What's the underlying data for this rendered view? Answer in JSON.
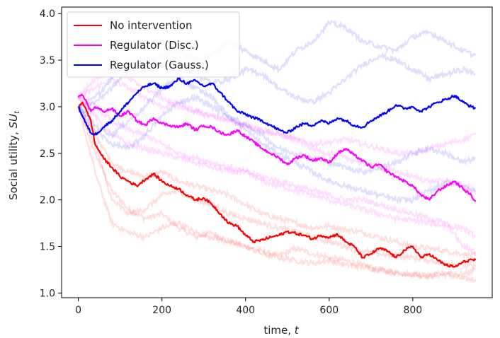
{
  "chart_data": {
    "type": "line",
    "title": "",
    "xlabel": "time, t",
    "ylabel": "Social utility, SU_t",
    "xlabel_parts": {
      "text": "time, ",
      "var": "t"
    },
    "ylabel_parts": {
      "text": "Social utility, ",
      "var": "SU",
      "sub": "t"
    },
    "xlim": [
      -40,
      990
    ],
    "ylim": [
      0.95,
      4.07
    ],
    "xticks": [
      0,
      200,
      400,
      600,
      800
    ],
    "xtick_labels": [
      "0",
      "200",
      "400",
      "600",
      "800"
    ],
    "yticks": [
      1.0,
      1.5,
      2.0,
      2.5,
      3.0,
      3.5,
      4.0
    ],
    "ytick_labels": [
      "1.0",
      "1.5",
      "2.0",
      "2.5",
      "3.0",
      "3.5",
      "4.0"
    ],
    "grid": false,
    "legend": {
      "placement": "top-left",
      "entries": [
        {
          "label": "No intervention",
          "color": "#ff0000"
        },
        {
          "label": "Regulator (Disc.)",
          "color": "#ff00ff"
        },
        {
          "label": "Regulator (Gauss.)",
          "color": "#0000ff"
        }
      ]
    },
    "series": [
      {
        "name": "No intervention",
        "color": "#ff0000",
        "role": "mean",
        "x": [
          0,
          10,
          20,
          30,
          40,
          60,
          80,
          100,
          120,
          140,
          160,
          180,
          200,
          220,
          240,
          260,
          280,
          300,
          320,
          340,
          360,
          380,
          400,
          420,
          440,
          460,
          480,
          500,
          520,
          540,
          560,
          580,
          600,
          620,
          640,
          660,
          680,
          700,
          720,
          740,
          760,
          780,
          800,
          820,
          840,
          860,
          880,
          900,
          920,
          940,
          950
        ],
        "y": [
          3.0,
          3.05,
          2.95,
          2.85,
          2.6,
          2.45,
          2.35,
          2.25,
          2.2,
          2.15,
          2.22,
          2.28,
          2.2,
          2.15,
          2.12,
          2.05,
          2.0,
          2.02,
          1.95,
          1.85,
          1.75,
          1.72,
          1.62,
          1.55,
          1.57,
          1.6,
          1.62,
          1.66,
          1.64,
          1.62,
          1.58,
          1.62,
          1.6,
          1.63,
          1.55,
          1.5,
          1.38,
          1.42,
          1.48,
          1.45,
          1.38,
          1.46,
          1.5,
          1.38,
          1.42,
          1.35,
          1.3,
          1.28,
          1.33,
          1.36,
          1.35
        ]
      },
      {
        "name": "Regulator (Disc.)",
        "color": "#ff00ff",
        "role": "mean",
        "x": [
          0,
          10,
          20,
          30,
          40,
          60,
          80,
          100,
          120,
          140,
          160,
          180,
          200,
          220,
          240,
          260,
          280,
          300,
          320,
          340,
          360,
          380,
          400,
          420,
          440,
          460,
          480,
          500,
          520,
          540,
          560,
          580,
          600,
          620,
          640,
          660,
          680,
          700,
          720,
          740,
          760,
          780,
          800,
          820,
          840,
          860,
          880,
          900,
          920,
          940,
          950
        ],
        "y": [
          3.1,
          3.12,
          3.05,
          2.95,
          3.0,
          2.95,
          2.98,
          2.9,
          2.95,
          2.85,
          2.8,
          2.88,
          2.82,
          2.8,
          2.78,
          2.82,
          2.75,
          2.8,
          2.78,
          2.72,
          2.7,
          2.75,
          2.68,
          2.62,
          2.55,
          2.5,
          2.45,
          2.38,
          2.45,
          2.48,
          2.42,
          2.45,
          2.4,
          2.5,
          2.55,
          2.48,
          2.42,
          2.35,
          2.38,
          2.3,
          2.25,
          2.2,
          2.15,
          2.05,
          2.0,
          2.1,
          2.15,
          2.2,
          2.12,
          2.05,
          1.98
        ]
      },
      {
        "name": "Regulator (Gauss.)",
        "color": "#0000ff",
        "role": "mean",
        "x": [
          0,
          10,
          20,
          30,
          40,
          60,
          80,
          100,
          120,
          140,
          160,
          180,
          200,
          220,
          240,
          260,
          280,
          300,
          320,
          340,
          360,
          380,
          400,
          420,
          440,
          460,
          480,
          500,
          520,
          540,
          560,
          580,
          600,
          620,
          640,
          660,
          680,
          700,
          720,
          740,
          760,
          780,
          800,
          820,
          840,
          860,
          880,
          900,
          920,
          940,
          950
        ],
        "y": [
          3.0,
          2.9,
          2.8,
          2.72,
          2.7,
          2.78,
          2.85,
          2.95,
          3.05,
          3.15,
          3.22,
          3.25,
          3.2,
          3.22,
          3.3,
          3.25,
          3.28,
          3.22,
          3.25,
          3.15,
          3.05,
          2.95,
          2.92,
          2.88,
          2.85,
          2.8,
          2.75,
          2.72,
          2.78,
          2.82,
          2.8,
          2.85,
          2.82,
          2.88,
          2.85,
          2.8,
          2.78,
          2.85,
          2.9,
          2.95,
          3.02,
          2.98,
          3.0,
          2.95,
          3.0,
          3.05,
          3.08,
          3.12,
          3.05,
          3.0,
          2.98
        ]
      },
      {
        "color": "#ff0000",
        "role": "run",
        "x": [
          0,
          40,
          80,
          120,
          160,
          200,
          240,
          280,
          320,
          360,
          400,
          440,
          480,
          520,
          560,
          600,
          640,
          680,
          720,
          760,
          800,
          840,
          880,
          920,
          950
        ],
        "y": [
          3.0,
          2.5,
          2.1,
          1.9,
          1.8,
          1.85,
          1.7,
          1.6,
          1.65,
          1.55,
          1.5,
          1.45,
          1.4,
          1.48,
          1.42,
          1.38,
          1.35,
          1.3,
          1.25,
          1.22,
          1.2,
          1.18,
          1.2,
          1.15,
          1.15
        ]
      },
      {
        "color": "#ff0000",
        "role": "run",
        "x": [
          0,
          40,
          80,
          120,
          160,
          200,
          240,
          280,
          320,
          360,
          400,
          440,
          480,
          520,
          560,
          600,
          640,
          680,
          720,
          760,
          800,
          840,
          880,
          920,
          950
        ],
        "y": [
          3.0,
          2.7,
          2.4,
          2.3,
          2.25,
          2.3,
          2.2,
          2.15,
          2.1,
          2.05,
          1.95,
          1.85,
          1.8,
          1.75,
          1.7,
          1.72,
          1.68,
          1.65,
          1.6,
          1.55,
          1.5,
          1.48,
          1.45,
          1.42,
          1.4
        ]
      },
      {
        "color": "#ff0000",
        "role": "run",
        "x": [
          0,
          40,
          80,
          120,
          160,
          200,
          240,
          280,
          320,
          360,
          400,
          440,
          480,
          520,
          560,
          600,
          640,
          680,
          720,
          760,
          800,
          840,
          880,
          920,
          950
        ],
        "y": [
          3.0,
          2.3,
          1.75,
          1.65,
          1.6,
          1.7,
          1.75,
          1.65,
          1.6,
          1.55,
          1.5,
          1.42,
          1.38,
          1.35,
          1.32,
          1.35,
          1.3,
          1.28,
          1.25,
          1.22,
          1.2,
          1.18,
          1.22,
          1.2,
          1.25
        ]
      },
      {
        "color": "#ff0000",
        "role": "run",
        "x": [
          0,
          40,
          80,
          120,
          160,
          200,
          240,
          280,
          320,
          360,
          400,
          440,
          480,
          520,
          560,
          600,
          640,
          680,
          720,
          760,
          800,
          840,
          880,
          920,
          950
        ],
        "y": [
          3.0,
          2.6,
          2.0,
          1.85,
          1.9,
          2.05,
          2.1,
          2.0,
          1.95,
          1.85,
          1.8,
          1.75,
          1.7,
          1.66,
          1.6,
          1.55,
          1.5,
          1.45,
          1.42,
          1.4,
          1.38,
          1.35,
          1.32,
          1.3,
          1.28
        ]
      },
      {
        "color": "#ff00ff",
        "role": "run",
        "x": [
          0,
          40,
          80,
          120,
          160,
          200,
          240,
          280,
          320,
          360,
          400,
          440,
          480,
          520,
          560,
          600,
          640,
          680,
          720,
          760,
          800,
          840,
          880,
          920,
          950
        ],
        "y": [
          3.1,
          3.2,
          3.3,
          3.2,
          3.1,
          3.0,
          3.05,
          2.95,
          2.9,
          2.85,
          2.8,
          2.75,
          2.7,
          2.65,
          2.6,
          2.62,
          2.65,
          2.6,
          2.55,
          2.5,
          2.5,
          2.55,
          2.6,
          2.65,
          2.7
        ]
      },
      {
        "color": "#ff00ff",
        "role": "run",
        "x": [
          0,
          40,
          80,
          120,
          160,
          200,
          240,
          280,
          320,
          360,
          400,
          440,
          480,
          520,
          560,
          600,
          640,
          680,
          720,
          760,
          800,
          840,
          880,
          920,
          950
        ],
        "y": [
          3.1,
          2.9,
          2.7,
          2.6,
          2.55,
          2.5,
          2.45,
          2.4,
          2.35,
          2.3,
          2.3,
          2.2,
          2.15,
          2.1,
          2.05,
          2.0,
          1.95,
          1.9,
          1.85,
          1.8,
          1.78,
          1.75,
          1.72,
          1.7,
          1.6
        ]
      },
      {
        "color": "#ff00ff",
        "role": "run",
        "x": [
          0,
          40,
          80,
          120,
          160,
          200,
          240,
          280,
          320,
          360,
          400,
          440,
          480,
          520,
          560,
          600,
          640,
          680,
          720,
          760,
          800,
          840,
          880,
          920,
          950
        ],
        "y": [
          3.1,
          3.0,
          2.85,
          2.75,
          2.7,
          2.6,
          2.5,
          2.45,
          2.4,
          2.35,
          2.3,
          2.25,
          2.2,
          2.15,
          2.1,
          2.05,
          2.0,
          2.0,
          1.95,
          1.9,
          1.85,
          1.8,
          1.75,
          1.5,
          1.45
        ]
      },
      {
        "color": "#ff00ff",
        "role": "run",
        "x": [
          0,
          40,
          80,
          120,
          160,
          200,
          240,
          280,
          320,
          360,
          400,
          440,
          480,
          520,
          560,
          600,
          640,
          680,
          720,
          760,
          800,
          840,
          880,
          920,
          950
        ],
        "y": [
          3.1,
          3.3,
          3.4,
          3.3,
          3.2,
          3.1,
          3.0,
          2.95,
          2.9,
          2.85,
          2.8,
          2.75,
          2.7,
          2.65,
          2.55,
          2.5,
          2.45,
          2.4,
          2.35,
          2.3,
          2.25,
          2.2,
          2.2,
          2.15,
          2.1
        ]
      },
      {
        "color": "#0000ff",
        "role": "run",
        "x": [
          0,
          40,
          80,
          120,
          160,
          200,
          240,
          280,
          320,
          360,
          400,
          440,
          480,
          520,
          560,
          600,
          640,
          680,
          720,
          760,
          800,
          840,
          880,
          920,
          950
        ],
        "y": [
          3.0,
          3.1,
          3.3,
          3.5,
          3.45,
          3.55,
          3.6,
          3.5,
          3.55,
          3.7,
          3.6,
          3.5,
          3.4,
          3.6,
          3.7,
          3.9,
          3.85,
          3.7,
          3.65,
          3.6,
          3.75,
          3.8,
          3.7,
          3.6,
          3.55
        ]
      },
      {
        "color": "#0000ff",
        "role": "run",
        "x": [
          0,
          40,
          80,
          120,
          160,
          200,
          240,
          280,
          320,
          360,
          400,
          440,
          480,
          520,
          560,
          600,
          640,
          680,
          720,
          760,
          800,
          840,
          880,
          920,
          950
        ],
        "y": [
          3.0,
          2.8,
          2.7,
          2.85,
          3.0,
          3.2,
          3.3,
          3.2,
          3.1,
          2.9,
          2.8,
          2.7,
          2.55,
          2.5,
          2.45,
          2.4,
          2.35,
          2.3,
          2.35,
          2.4,
          2.5,
          2.55,
          2.5,
          2.4,
          2.45
        ]
      },
      {
        "color": "#0000ff",
        "role": "run",
        "x": [
          0,
          40,
          80,
          120,
          160,
          200,
          240,
          280,
          320,
          360,
          400,
          440,
          480,
          520,
          560,
          600,
          640,
          680,
          720,
          760,
          800,
          840,
          880,
          920,
          950
        ],
        "y": [
          3.0,
          2.75,
          2.6,
          2.55,
          2.7,
          2.9,
          3.05,
          3.1,
          3.0,
          2.9,
          2.75,
          2.6,
          2.5,
          2.4,
          2.3,
          2.2,
          2.15,
          2.1,
          2.05,
          2.0,
          2.0,
          2.1,
          2.2,
          2.15,
          2.1
        ]
      },
      {
        "color": "#0000ff",
        "role": "run",
        "x": [
          0,
          40,
          80,
          120,
          160,
          200,
          240,
          280,
          320,
          360,
          400,
          440,
          480,
          520,
          560,
          600,
          640,
          680,
          720,
          760,
          800,
          840,
          880,
          920,
          950
        ],
        "y": [
          3.0,
          3.05,
          3.2,
          3.4,
          3.5,
          3.45,
          3.5,
          3.35,
          3.25,
          3.3,
          3.4,
          3.35,
          3.2,
          3.1,
          3.05,
          3.15,
          3.3,
          3.45,
          3.55,
          3.5,
          3.4,
          3.3,
          3.35,
          3.4,
          3.35
        ]
      }
    ]
  }
}
